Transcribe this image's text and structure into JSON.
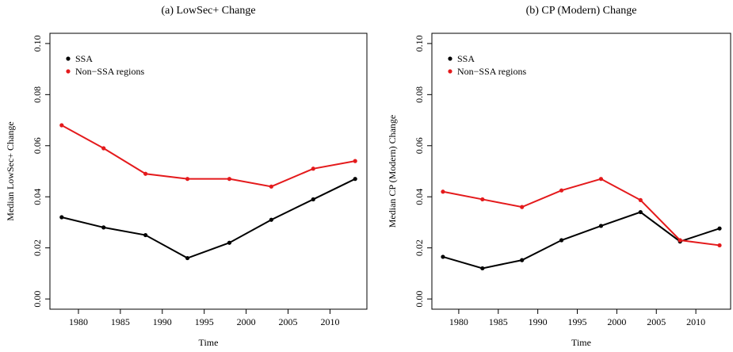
{
  "chart_data": [
    {
      "type": "line",
      "title": "(a) LowSec+ Change",
      "xlabel": "Time",
      "ylabel": "Median LowSec+ Change",
      "x": [
        1978,
        1983,
        1988,
        1993,
        1998,
        2003,
        2008,
        2013
      ],
      "series": [
        {
          "name": "SSA",
          "color": "#000000",
          "values": [
            0.032,
            0.028,
            0.025,
            0.016,
            0.022,
            0.031,
            0.039,
            0.047
          ]
        },
        {
          "name": "Non−SSA regions",
          "color": "#e41a1c",
          "values": [
            0.068,
            0.059,
            0.049,
            0.047,
            0.047,
            0.044,
            0.051,
            0.054
          ]
        }
      ],
      "xlim": [
        1976.6,
        2014.4
      ],
      "ylim": [
        -0.004,
        0.104
      ],
      "xticks": [
        1980,
        1985,
        1990,
        1995,
        2000,
        2005,
        2010
      ],
      "yticks": [
        {
          "value": 0,
          "label": "0.00"
        },
        {
          "value": 0.02,
          "label": "0.02"
        },
        {
          "value": 0.04,
          "label": "0.04"
        },
        {
          "value": 0.06,
          "label": "0.06"
        },
        {
          "value": 0.08,
          "label": "0.08"
        },
        {
          "value": 0.1,
          "label": "0.10"
        }
      ],
      "legend": "top-left"
    },
    {
      "type": "line",
      "title": "(b) CP (Modern) Change",
      "xlabel": "Time",
      "ylabel": "Median CP (Modern) Change",
      "x": [
        1978,
        1983,
        1988,
        1993,
        1998,
        2003,
        2008,
        2013
      ],
      "series": [
        {
          "name": "SSA",
          "color": "#000000",
          "values": [
            0.0165,
            0.012,
            0.0152,
            0.023,
            0.0286,
            0.034,
            0.0225,
            0.0276
          ]
        },
        {
          "name": "Non−SSA regions",
          "color": "#e41a1c",
          "values": [
            0.042,
            0.039,
            0.036,
            0.0425,
            0.047,
            0.0387,
            0.023,
            0.021
          ]
        }
      ],
      "xlim": [
        1976.6,
        2014.4
      ],
      "ylim": [
        -0.004,
        0.104
      ],
      "xticks": [
        1980,
        1985,
        1990,
        1995,
        2000,
        2005,
        2010
      ],
      "yticks": [
        {
          "value": 0,
          "label": "0.00"
        },
        {
          "value": 0.02,
          "label": "0.02"
        },
        {
          "value": 0.04,
          "label": "0.04"
        },
        {
          "value": 0.06,
          "label": "0.06"
        },
        {
          "value": 0.08,
          "label": "0.08"
        },
        {
          "value": 0.1,
          "label": "0.10"
        }
      ],
      "legend": "top-left"
    }
  ]
}
